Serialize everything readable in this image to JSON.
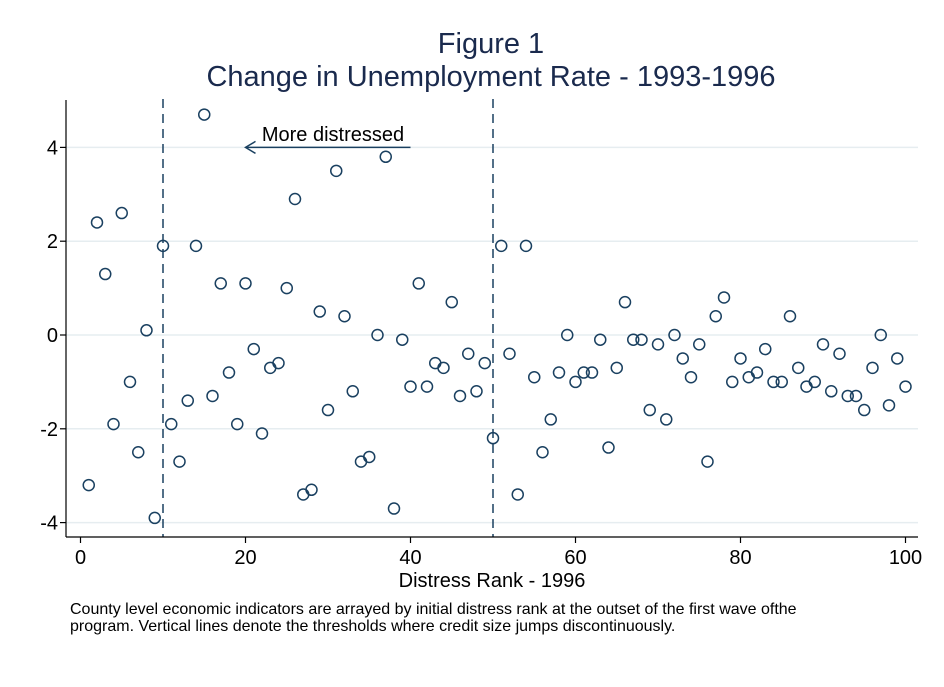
{
  "figure": {
    "title_line1": "Figure 1",
    "title_line2": "Change in Unemployment Rate - 1993-1996",
    "note": "County level economic indicators are arrayed by initial distress rank at the outset of the first wave ofthe program.  Vertical lines denote the thresholds where credit size jumps discontinuously.",
    "annotation_text": "More distressed"
  },
  "chart_data": {
    "type": "scatter",
    "title": "Change in Unemployment Rate - 1993-1996",
    "xlabel": "Distress Rank - 1996",
    "ylabel": "",
    "xlim": [
      0,
      100
    ],
    "ylim": [
      -4,
      4
    ],
    "x_ticks": [
      0,
      20,
      40,
      60,
      80,
      100
    ],
    "y_ticks": [
      -4,
      -2,
      0,
      2,
      4
    ],
    "grid": true,
    "vlines": [
      10,
      50
    ],
    "annotation": {
      "text": "More distressed",
      "arrow_from": [
        40,
        4.0
      ],
      "arrow_to": [
        20,
        4.0
      ]
    },
    "points": [
      {
        "x": 1,
        "y": -3.2
      },
      {
        "x": 2,
        "y": 2.4
      },
      {
        "x": 3,
        "y": 1.3
      },
      {
        "x": 4,
        "y": -1.9
      },
      {
        "x": 5,
        "y": 2.6
      },
      {
        "x": 6,
        "y": -1.0
      },
      {
        "x": 7,
        "y": -2.5
      },
      {
        "x": 8,
        "y": 0.1
      },
      {
        "x": 9,
        "y": -3.9
      },
      {
        "x": 10,
        "y": 1.9
      },
      {
        "x": 11,
        "y": -1.9
      },
      {
        "x": 12,
        "y": -2.7
      },
      {
        "x": 13,
        "y": -1.4
      },
      {
        "x": 14,
        "y": 1.9
      },
      {
        "x": 15,
        "y": 4.7
      },
      {
        "x": 16,
        "y": -1.3
      },
      {
        "x": 17,
        "y": 1.1
      },
      {
        "x": 18,
        "y": -0.8
      },
      {
        "x": 19,
        "y": -1.9
      },
      {
        "x": 20,
        "y": 1.1
      },
      {
        "x": 21,
        "y": -0.3
      },
      {
        "x": 22,
        "y": -2.1
      },
      {
        "x": 23,
        "y": -0.7
      },
      {
        "x": 24,
        "y": -0.6
      },
      {
        "x": 25,
        "y": 1.0
      },
      {
        "x": 26,
        "y": 2.9
      },
      {
        "x": 27,
        "y": -3.4
      },
      {
        "x": 28,
        "y": -3.3
      },
      {
        "x": 29,
        "y": 0.5
      },
      {
        "x": 30,
        "y": -1.6
      },
      {
        "x": 31,
        "y": 3.5
      },
      {
        "x": 32,
        "y": 0.4
      },
      {
        "x": 33,
        "y": -1.2
      },
      {
        "x": 34,
        "y": -2.7
      },
      {
        "x": 35,
        "y": -2.6
      },
      {
        "x": 36,
        "y": 0.0
      },
      {
        "x": 37,
        "y": 3.8
      },
      {
        "x": 38,
        "y": -3.7
      },
      {
        "x": 39,
        "y": -0.1
      },
      {
        "x": 40,
        "y": -1.1
      },
      {
        "x": 41,
        "y": 1.1
      },
      {
        "x": 42,
        "y": -1.1
      },
      {
        "x": 43,
        "y": -0.6
      },
      {
        "x": 44,
        "y": -0.7
      },
      {
        "x": 45,
        "y": 0.7
      },
      {
        "x": 46,
        "y": -1.3
      },
      {
        "x": 47,
        "y": -0.4
      },
      {
        "x": 48,
        "y": -1.2
      },
      {
        "x": 49,
        "y": -0.6
      },
      {
        "x": 50,
        "y": -2.2
      },
      {
        "x": 51,
        "y": 1.9
      },
      {
        "x": 52,
        "y": -0.4
      },
      {
        "x": 53,
        "y": -3.4
      },
      {
        "x": 54,
        "y": 1.9
      },
      {
        "x": 55,
        "y": -0.9
      },
      {
        "x": 56,
        "y": -2.5
      },
      {
        "x": 57,
        "y": -1.8
      },
      {
        "x": 58,
        "y": -0.8
      },
      {
        "x": 59,
        "y": 0.0
      },
      {
        "x": 60,
        "y": -1.0
      },
      {
        "x": 61,
        "y": -0.8
      },
      {
        "x": 62,
        "y": -0.8
      },
      {
        "x": 63,
        "y": -0.1
      },
      {
        "x": 64,
        "y": -2.4
      },
      {
        "x": 65,
        "y": -0.7
      },
      {
        "x": 66,
        "y": 0.7
      },
      {
        "x": 67,
        "y": -0.1
      },
      {
        "x": 68,
        "y": -0.1
      },
      {
        "x": 69,
        "y": -1.6
      },
      {
        "x": 70,
        "y": -0.2
      },
      {
        "x": 71,
        "y": -1.8
      },
      {
        "x": 72,
        "y": 0.0
      },
      {
        "x": 73,
        "y": -0.5
      },
      {
        "x": 74,
        "y": -0.9
      },
      {
        "x": 75,
        "y": -0.2
      },
      {
        "x": 76,
        "y": -2.7
      },
      {
        "x": 77,
        "y": 0.4
      },
      {
        "x": 78,
        "y": 0.8
      },
      {
        "x": 79,
        "y": -1.0
      },
      {
        "x": 80,
        "y": -0.5
      },
      {
        "x": 81,
        "y": -0.9
      },
      {
        "x": 82,
        "y": -0.8
      },
      {
        "x": 83,
        "y": -0.3
      },
      {
        "x": 84,
        "y": -1.0
      },
      {
        "x": 85,
        "y": -1.0
      },
      {
        "x": 86,
        "y": 0.4
      },
      {
        "x": 87,
        "y": -0.7
      },
      {
        "x": 88,
        "y": -1.1
      },
      {
        "x": 89,
        "y": -1.0
      },
      {
        "x": 90,
        "y": -0.2
      },
      {
        "x": 91,
        "y": -1.2
      },
      {
        "x": 92,
        "y": -0.4
      },
      {
        "x": 93,
        "y": -1.3
      },
      {
        "x": 94,
        "y": -1.3
      },
      {
        "x": 95,
        "y": -1.6
      },
      {
        "x": 96,
        "y": -0.7
      },
      {
        "x": 97,
        "y": 0.0
      },
      {
        "x": 98,
        "y": -1.5
      },
      {
        "x": 99,
        "y": -0.5
      },
      {
        "x": 100,
        "y": -1.1
      }
    ],
    "colors": {
      "marker": "#1a4060",
      "grid": "#e6edf0",
      "vline": "#1a4060",
      "axis": "#000000",
      "title": "#1a2a4d"
    }
  }
}
